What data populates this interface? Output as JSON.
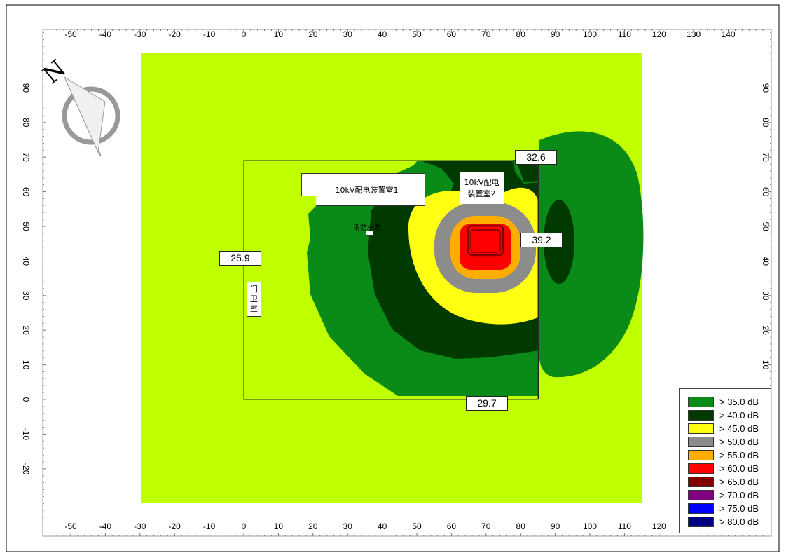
{
  "map": {
    "x_ticks": [
      "-50",
      "-40",
      "-30",
      "-20",
      "-10",
      "0",
      "10",
      "20",
      "30",
      "40",
      "50",
      "60",
      "70",
      "80",
      "90",
      "100",
      "110",
      "120",
      "130",
      "140"
    ],
    "x_ticks_bottom": [
      "-50",
      "-40",
      "-30",
      "-20",
      "-10",
      "0",
      "10",
      "20",
      "30",
      "40",
      "50",
      "60",
      "70",
      "80",
      "90",
      "100",
      "110",
      "120"
    ],
    "y_ticks": [
      "90",
      "80",
      "70",
      "60",
      "50",
      "40",
      "30",
      "20",
      "10",
      "0",
      "-10",
      "-20"
    ],
    "compass_label": "N",
    "value_labels": {
      "west": "25.9",
      "north": "32.6",
      "east": "39.2",
      "south": "29.7"
    },
    "rooms": {
      "room1": "10kV配电装置室1",
      "room2_line1": "10kV配电",
      "room2_line2": "装置室2",
      "fire_room": "消防水泵",
      "guard_line1": "门",
      "guard_line2": "卫",
      "guard_line3": "室"
    },
    "colors": {
      "background_zone": "#bfff00",
      "c35": "#0a8a16",
      "c40": "#003a00",
      "c45": "#ffff12",
      "c50": "#8c8c8c",
      "c55": "#ffae00",
      "c60": "#ff0000",
      "c65": "#800000",
      "c70": "#800080",
      "c75": "#0000ff",
      "c80": "#000080"
    }
  },
  "legend": [
    {
      "label": "> 35.0 dB",
      "color": "#0a8a16"
    },
    {
      "label": "> 40.0 dB",
      "color": "#003a00"
    },
    {
      "label": "> 45.0 dB",
      "color": "#ffff12"
    },
    {
      "label": "> 50.0 dB",
      "color": "#8c8c8c"
    },
    {
      "label": "> 55.0 dB",
      "color": "#ffae00"
    },
    {
      "label": "> 60.0 dB",
      "color": "#ff0000"
    },
    {
      "label": "> 65.0 dB",
      "color": "#800000"
    },
    {
      "label": "> 70.0 dB",
      "color": "#800080"
    },
    {
      "label": "> 75.0 dB",
      "color": "#0000ff"
    },
    {
      "label": "> 80.0 dB",
      "color": "#000080"
    }
  ]
}
